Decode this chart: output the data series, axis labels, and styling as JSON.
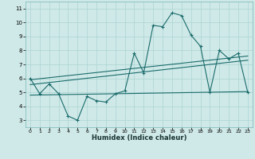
{
  "x": [
    0,
    1,
    2,
    3,
    4,
    5,
    6,
    7,
    8,
    9,
    10,
    11,
    12,
    13,
    14,
    15,
    16,
    17,
    18,
    19,
    20,
    21,
    22,
    23
  ],
  "y_main": [
    6.0,
    4.9,
    5.6,
    4.9,
    3.3,
    3.0,
    4.7,
    4.4,
    4.3,
    4.9,
    5.1,
    7.8,
    6.4,
    9.8,
    9.7,
    10.7,
    10.5,
    9.1,
    8.3,
    5.0,
    8.0,
    7.4,
    7.8,
    5.0
  ],
  "trend1_x": [
    0,
    23
  ],
  "trend1_y": [
    5.9,
    7.6
  ],
  "trend2_x": [
    0,
    23
  ],
  "trend2_y": [
    5.55,
    7.3
  ],
  "trend3_x": [
    0,
    23
  ],
  "trend3_y": [
    4.8,
    5.05
  ],
  "xlabel": "Humidex (Indice chaleur)",
  "xlim": [
    -0.5,
    23.5
  ],
  "ylim": [
    2.5,
    11.5
  ],
  "yticks": [
    3,
    4,
    5,
    6,
    7,
    8,
    9,
    10,
    11
  ],
  "xticks": [
    0,
    1,
    2,
    3,
    4,
    5,
    6,
    7,
    8,
    9,
    10,
    11,
    12,
    13,
    14,
    15,
    16,
    17,
    18,
    19,
    20,
    21,
    22,
    23
  ],
  "line_color": "#1a6b6b",
  "bg_color": "#cfe9e8",
  "grid_color": "#aad4d2"
}
